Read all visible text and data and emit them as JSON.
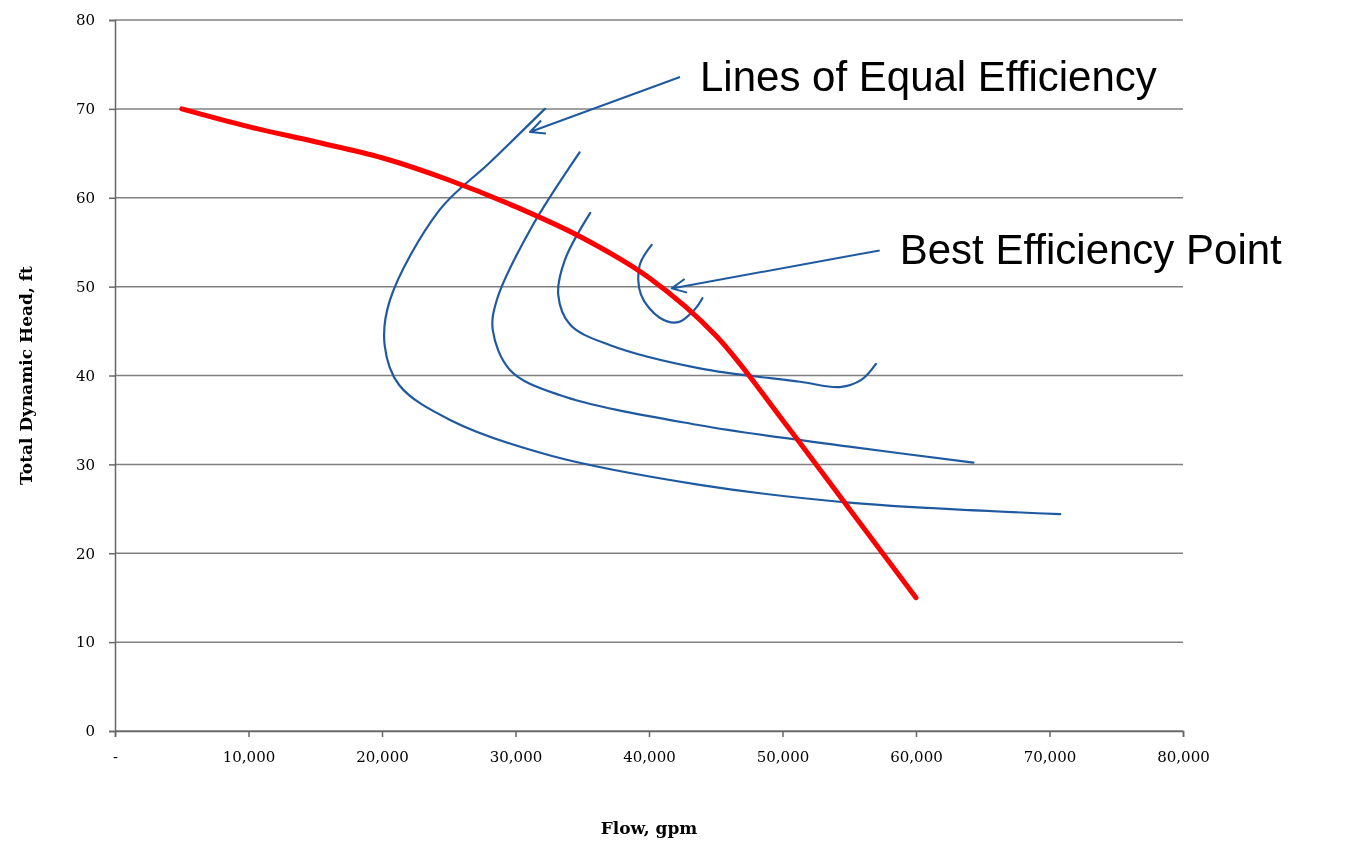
{
  "chart_data": {
    "type": "line",
    "xlabel": "Flow, gpm",
    "ylabel": "Total Dynamic Head, ft",
    "xlim": [
      0,
      80000
    ],
    "xticks": [
      {
        "value": 0,
        "label": "-"
      },
      {
        "value": 10000,
        "label": "10,000"
      },
      {
        "value": 20000,
        "label": "20,000"
      },
      {
        "value": 30000,
        "label": "30,000"
      },
      {
        "value": 40000,
        "label": "40,000"
      },
      {
        "value": 50000,
        "label": "50,000"
      },
      {
        "value": 60000,
        "label": "60,000"
      },
      {
        "value": 70000,
        "label": "70,000"
      },
      {
        "value": 80000,
        "label": "80,000"
      }
    ],
    "ylim": [
      0,
      80
    ],
    "yticks": [
      0,
      10,
      20,
      30,
      40,
      50,
      60,
      70,
      80
    ],
    "grid": "y",
    "marker": "none",
    "line_style": "solid",
    "series": [
      {
        "color": "#1f5aa0",
        "x": [
          32200,
          28100,
          24300,
          20600,
          20200,
          21300,
          25100,
          32600,
          43800,
          55000,
          70800
        ],
        "values": [
          70,
          64,
          58.6,
          48.5,
          43.4,
          38.9,
          35,
          31,
          27.7,
          25.7,
          24.4
        ]
      },
      {
        "color": "#1f5aa0",
        "x": [
          34800,
          31100,
          28600,
          28300,
          29600,
          33300,
          43800,
          55000,
          64300
        ],
        "values": [
          65.1,
          56.4,
          48.5,
          45.1,
          40.6,
          37.8,
          34.4,
          32,
          30.2
        ]
      },
      {
        "color": "#1f5aa0",
        "x": [
          35600,
          33700,
          33200,
          34100,
          37100,
          43800,
          51300,
          54300,
          55900,
          57000
        ],
        "values": [
          58.3,
          53,
          49.1,
          45.7,
          43.4,
          40.8,
          39.3,
          38.7,
          39.5,
          41.3
        ]
      },
      {
        "color": "#1f5aa0",
        "x": [
          40200,
          39300,
          39400,
          40800,
          42200,
          43400,
          44000
        ],
        "values": [
          54.7,
          52.4,
          49.1,
          46.5,
          46,
          47.4,
          48.7
        ]
      },
      {
        "color": "#ff0000",
        "x": [
          5000,
          10000,
          15000,
          20000,
          25000,
          30000,
          35000,
          40000,
          45000,
          50000,
          55000,
          60000
        ],
        "values": [
          70,
          68,
          66.3,
          64.5,
          62,
          59,
          55.5,
          51,
          44.5,
          35,
          25,
          15
        ]
      }
    ],
    "annotations": [
      "Lines of Equal Efficiency",
      {
        "text": "Best Efficiency Point",
        "x": 41700,
        "y": 49.8
      }
    ]
  }
}
